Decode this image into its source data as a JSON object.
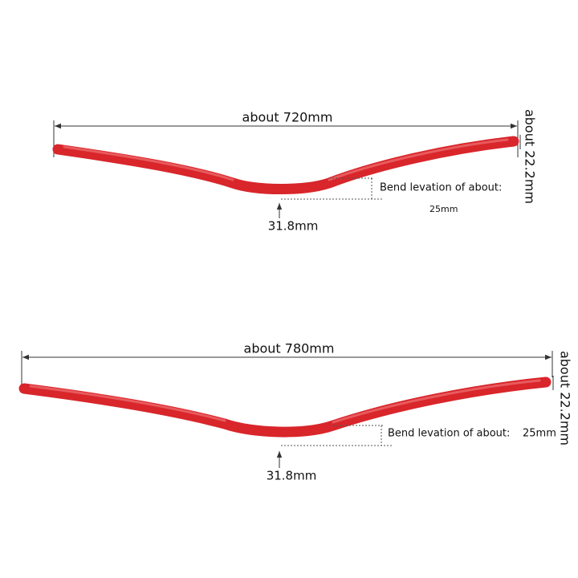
{
  "diagrams": [
    {
      "width_label": "about 720mm",
      "end_diameter_label": "about 22.2mm",
      "rise_label": "Bend levation of about:",
      "rise_value": "25mm",
      "clamp_label": "31.8mm"
    },
    {
      "width_label": "about 780mm",
      "end_diameter_label": "about 22.2mm",
      "rise_label": "Bend levation of about:",
      "rise_value": "25mm",
      "clamp_label": "31.8mm"
    }
  ]
}
